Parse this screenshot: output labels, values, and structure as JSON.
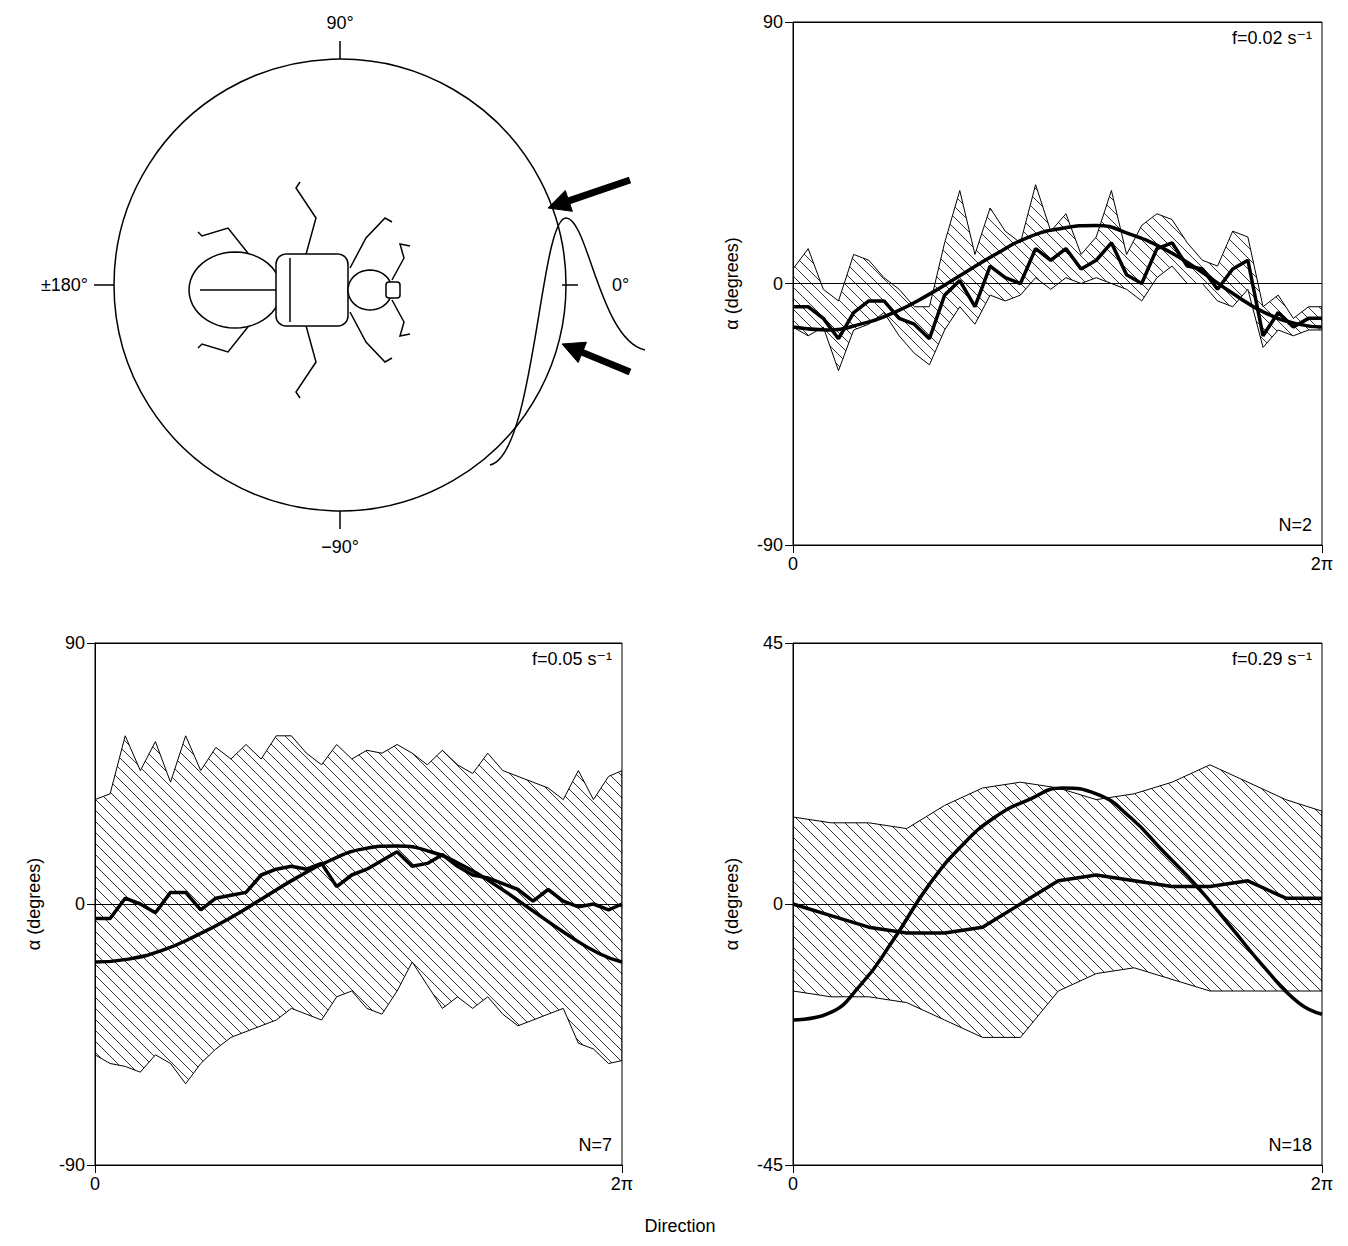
{
  "chart_data": [
    {
      "type": "line",
      "ylabel": "α (degrees)",
      "annotations": [
        "f=0.02 s⁻¹",
        "N=2"
      ],
      "color": "#000000",
      "x": [
        0,
        0.18,
        0.36,
        0.54,
        0.72,
        0.9,
        1.08,
        1.26,
        1.44,
        1.62,
        1.8,
        1.98,
        2.16,
        2.34,
        2.52,
        2.7,
        2.88,
        3.06,
        3.24,
        3.42,
        3.6,
        3.78,
        3.96,
        4.14,
        4.32,
        4.5,
        4.68,
        4.86,
        5.04,
        5.22,
        5.4,
        5.58,
        5.76,
        5.94,
        6.12,
        6.28
      ],
      "values": [
        -8,
        -8,
        -12,
        -19,
        -10,
        -6,
        -6,
        -12,
        -14,
        -19,
        -4,
        1,
        -8,
        6,
        2,
        0,
        12,
        8,
        12,
        5,
        8,
        14,
        3,
        0,
        12,
        14,
        6,
        5,
        -2,
        5,
        8,
        -18,
        -10,
        -15,
        -12,
        -12
      ],
      "band": {
        "lower": [
          -15,
          -18,
          -15,
          -30,
          -16,
          -14,
          -10,
          -18,
          -24,
          -28,
          -16,
          -8,
          -14,
          -4,
          -6,
          -4,
          2,
          -2,
          2,
          0,
          2,
          0,
          -2,
          -6,
          2,
          6,
          0,
          0,
          -6,
          -8,
          -2,
          -22,
          -16,
          -18,
          -16,
          -16
        ],
        "upper": [
          5,
          12,
          -2,
          -6,
          10,
          8,
          2,
          -2,
          -8,
          -8,
          14,
          32,
          10,
          26,
          18,
          14,
          34,
          18,
          24,
          10,
          16,
          32,
          10,
          20,
          24,
          22,
          14,
          8,
          6,
          18,
          16,
          -8,
          -4,
          -12,
          -8,
          -8
        ]
      },
      "fit": {
        "x": [
          0,
          0.4,
          0.8,
          1.2,
          1.6,
          2.0,
          2.4,
          2.8,
          3.2,
          3.6,
          4.0,
          4.4,
          4.8,
          5.2,
          5.6,
          6.0,
          6.28
        ],
        "values": [
          -15,
          -16,
          -14,
          -10,
          -4,
          3,
          10,
          16,
          19,
          20,
          17,
          12,
          5,
          -3,
          -10,
          -14,
          -15
        ]
      },
      "xlim": [
        0,
        6.28
      ],
      "xticks": [
        0,
        {
          "value": 6.28,
          "label": "2π"
        }
      ],
      "ylim": [
        -90,
        90
      ],
      "yticks": [
        -90,
        0,
        90
      ],
      "grid": true
    },
    {
      "type": "line",
      "ylabel": "α (degrees)",
      "annotations": [
        "f=0.05 s⁻¹",
        "N=7"
      ],
      "color": "#000000",
      "x": [
        0,
        0.18,
        0.36,
        0.54,
        0.72,
        0.9,
        1.08,
        1.26,
        1.44,
        1.62,
        1.8,
        1.98,
        2.16,
        2.34,
        2.52,
        2.7,
        2.88,
        3.06,
        3.24,
        3.42,
        3.6,
        3.78,
        3.96,
        4.14,
        4.32,
        4.5,
        4.68,
        4.86,
        5.04,
        5.22,
        5.4,
        5.58,
        5.76,
        5.94,
        6.12,
        6.28
      ],
      "values": [
        -5,
        -5,
        2,
        0,
        -3,
        4,
        4,
        -2,
        2,
        3,
        4,
        10,
        12,
        13,
        12,
        14,
        6,
        10,
        12,
        15,
        18,
        13,
        14,
        17,
        13,
        10,
        9,
        7,
        5,
        1,
        5,
        1,
        -1,
        0,
        -2,
        0
      ],
      "band": {
        "lower": [
          -52,
          -55,
          -56,
          -58,
          -52,
          -55,
          -62,
          -55,
          -50,
          -46,
          -44,
          -42,
          -40,
          -36,
          -38,
          -40,
          -32,
          -30,
          -36,
          -38,
          -30,
          -20,
          -28,
          -36,
          -32,
          -36,
          -32,
          -38,
          -42,
          -40,
          -38,
          -36,
          -48,
          -50,
          -55,
          -54
        ],
        "upper": [
          36,
          38,
          58,
          46,
          56,
          42,
          58,
          46,
          54,
          50,
          55,
          50,
          58,
          58,
          52,
          48,
          55,
          50,
          53,
          52,
          55,
          52,
          48,
          53,
          48,
          45,
          52,
          46,
          44,
          42,
          40,
          36,
          46,
          36,
          44,
          46
        ]
      },
      "fit": {
        "x": [
          0,
          0.4,
          0.8,
          1.2,
          1.6,
          2.0,
          2.4,
          2.8,
          3.2,
          3.6,
          4.0,
          4.4,
          4.8,
          5.2,
          5.6,
          6.0,
          6.28
        ],
        "values": [
          -20,
          -19,
          -16,
          -11,
          -5,
          2,
          9,
          15,
          19,
          20,
          18,
          13,
          6,
          -2,
          -10,
          -17,
          -20
        ]
      },
      "xlim": [
        0,
        6.28
      ],
      "xticks": [
        0,
        {
          "value": 6.28,
          "label": "2π"
        }
      ],
      "ylim": [
        -90,
        90
      ],
      "yticks": [
        -90,
        0,
        90
      ],
      "grid": true
    },
    {
      "type": "line",
      "ylabel": "α (degrees)",
      "annotations": [
        "f=0.29 s⁻¹",
        "N=18"
      ],
      "color": "#000000",
      "x": [
        0,
        0.45,
        0.9,
        1.35,
        1.8,
        2.25,
        2.7,
        3.15,
        3.6,
        4.05,
        4.5,
        4.95,
        5.4,
        5.85,
        6.28
      ],
      "values": [
        0,
        -2,
        -4,
        -5,
        -5,
        -4,
        0,
        4,
        5,
        4,
        3,
        3,
        4,
        1,
        1
      ],
      "band": {
        "lower": [
          -15,
          -16,
          -16,
          -17,
          -20,
          -23,
          -23,
          -15,
          -12,
          -11,
          -13,
          -15,
          -15,
          -15,
          -15
        ],
        "upper": [
          15,
          14,
          14,
          13,
          17,
          20,
          21,
          20,
          18,
          19,
          21,
          24,
          21,
          18,
          16
        ]
      },
      "fit": {
        "x": [
          0,
          0.4,
          0.8,
          1.2,
          1.6,
          2.0,
          2.4,
          2.8,
          3.2,
          3.6,
          4.0,
          4.4,
          4.8,
          5.2,
          5.6,
          6.0,
          6.28
        ],
        "values": [
          -20,
          -19,
          -14,
          -6,
          3,
          10,
          15,
          18,
          20,
          19,
          15,
          9,
          3,
          -4,
          -11,
          -17,
          -19
        ]
      },
      "xlim": [
        0,
        6.28
      ],
      "xticks": [
        0,
        {
          "value": 6.28,
          "label": "2π"
        }
      ],
      "ylim": [
        -45,
        45
      ],
      "yticks": [
        -45,
        0,
        45
      ],
      "grid": true
    }
  ],
  "shared_xlabel": "Direction",
  "diagram": {
    "labels": {
      "top": "90°",
      "left": "±180°",
      "right": "0°",
      "bottom": "−90°"
    }
  }
}
